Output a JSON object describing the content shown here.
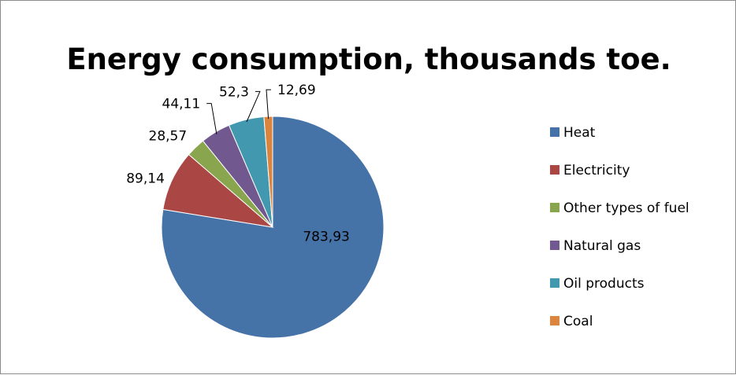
{
  "chart_data": {
    "type": "pie",
    "title": "Energy consumption, thousands toe.",
    "slices": [
      {
        "label": "Heat",
        "value": 783.93,
        "display": "783,93",
        "color": "#4572A7"
      },
      {
        "label": "Electricity",
        "value": 89.14,
        "display": "89,14",
        "color": "#AA4643"
      },
      {
        "label": "Other types of fuel",
        "value": 28.57,
        "display": "28,57",
        "color": "#89A54E"
      },
      {
        "label": "Natural gas",
        "value": 44.11,
        "display": "44,11",
        "color": "#71588F"
      },
      {
        "label": "Oil products",
        "value": 52.3,
        "display": "52,3",
        "color": "#4198AF"
      },
      {
        "label": "Coal",
        "value": 12.69,
        "display": "12,69",
        "color": "#DB843D"
      }
    ],
    "legend_position": "right"
  }
}
